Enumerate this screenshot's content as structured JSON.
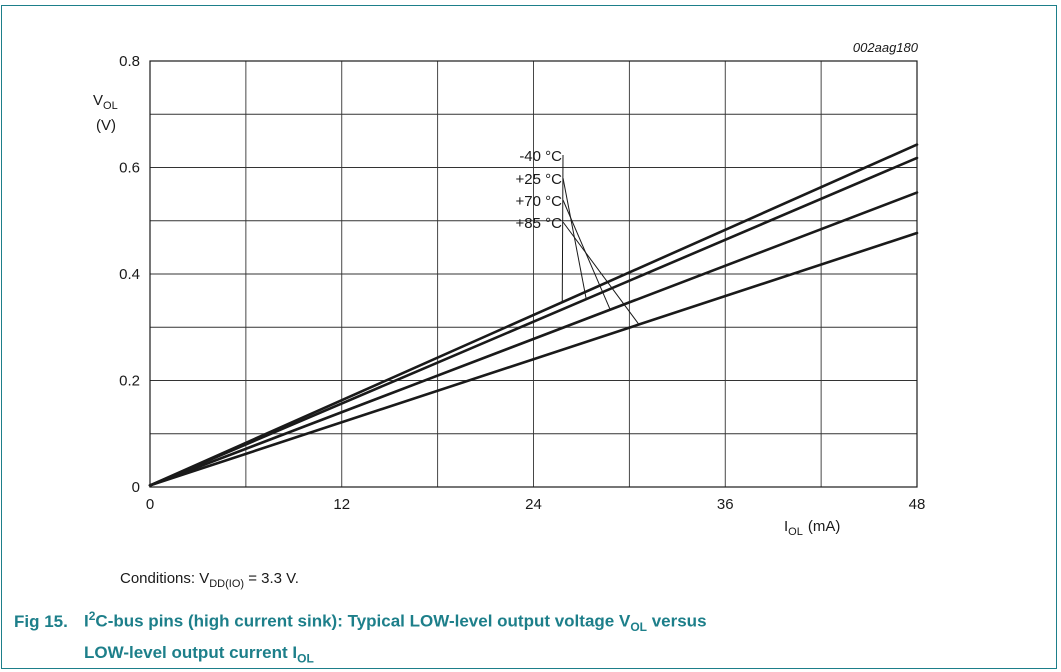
{
  "figure_id": "002aag180",
  "conditions": {
    "prefix": "Conditions: V",
    "subscript": "DD(IO)",
    "suffix": " = 3.3 V."
  },
  "caption": {
    "number": "Fig 15.",
    "part1": "I",
    "sup": "2",
    "part2": "C-bus pins (high current sink): Typical LOW-level output voltage V",
    "sub1": "OL",
    "part3": " versus",
    "line2": "LOW-level output current I",
    "sub2": "OL"
  },
  "colors": {
    "accent": "#1d7f8a",
    "line": "#1a1a1a",
    "grid": "#333333"
  },
  "chart_data": {
    "type": "line",
    "title": "",
    "xlabel": {
      "main": "I",
      "sub": "OL",
      "unit": "(mA)"
    },
    "ylabel": {
      "main": "V",
      "sub": "OL",
      "unit": "(V)"
    },
    "xlim": [
      0,
      48
    ],
    "ylim": [
      0,
      0.8
    ],
    "xticks": [
      "0",
      "12",
      "24",
      "36",
      "48"
    ],
    "yticks": [
      "0",
      "0.2",
      "0.4",
      "0.6",
      "0.8"
    ],
    "grid": true,
    "minor_gridlines": {
      "x_step": 6,
      "y_step": 0.1
    },
    "legend_placement": "inline labels with leader lines, center",
    "series": [
      {
        "name": "-40 °C",
        "x": [
          0,
          48
        ],
        "y": [
          0.003,
          0.643
        ]
      },
      {
        "name": "+25 °C",
        "x": [
          0,
          48
        ],
        "y": [
          0.003,
          0.618
        ]
      },
      {
        "name": "+70 °C",
        "x": [
          0,
          48
        ],
        "y": [
          0.003,
          0.553
        ]
      },
      {
        "name": "+85 °C",
        "x": [
          0,
          48
        ],
        "y": [
          0.003,
          0.477
        ]
      }
    ]
  }
}
